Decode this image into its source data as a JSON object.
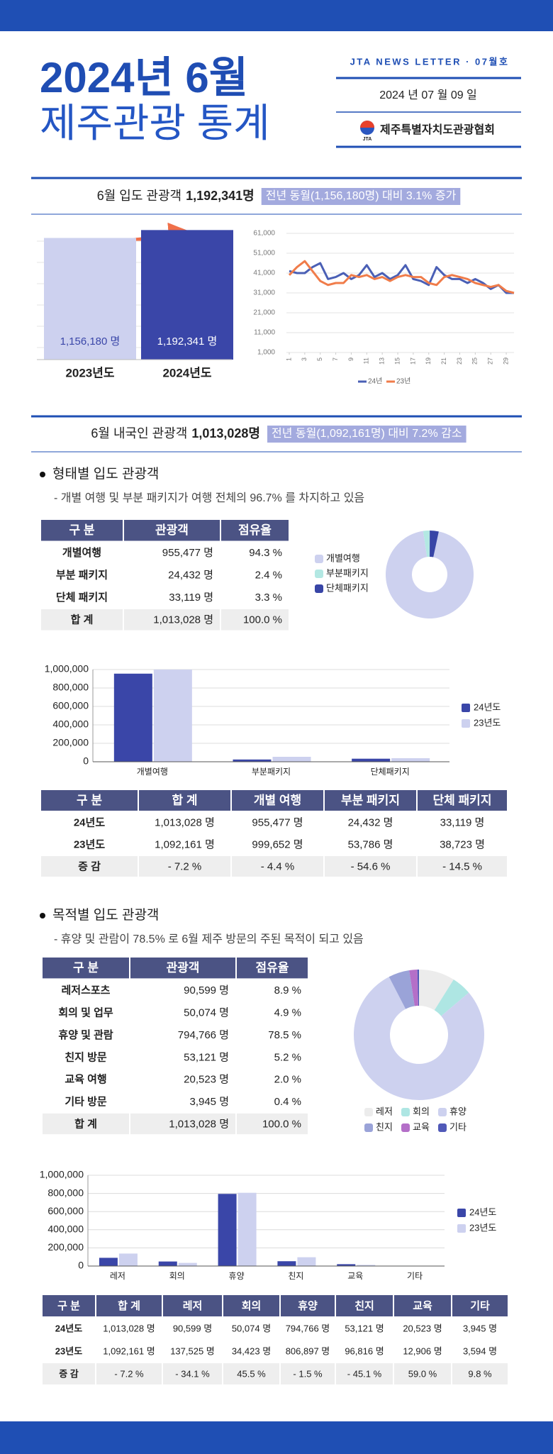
{
  "header": {
    "title_line1": "2024년 6월",
    "title_line2": "제주관광 통계",
    "newsletter": "JTA NEWS LETTER · 07월호",
    "date": "2024 년  07 월  09 일",
    "logo": "JTA",
    "org": "제주특별자치도관광협회"
  },
  "summaries": [
    {
      "label": "6월 입도 관광객",
      "value": "1,192,341명",
      "compare": "전년 동월(1,156,180명) 대비 3.1% 증가"
    },
    {
      "label": "6월 내국인 관광객",
      "value": "1,013,028명",
      "compare": "전년 동월(1,092,161명) 대비 7.2% 감소"
    }
  ],
  "sections": [
    {
      "heading": "형태별 입도 관광객",
      "note": "- 개별 여행 및 부분 패키지가 여행 전체의 96.7% 를 차지하고 있음"
    },
    {
      "heading": "목적별 입도 관광객",
      "note": "- 휴양 및 관람이 78.5% 로 6월 제주 방문의 주된 목적이 되고 있음"
    }
  ],
  "tables": [
    {
      "header": [
        "구 분",
        "관광객",
        "점유율"
      ],
      "rows": [
        [
          "개별여행",
          "955,477 명",
          "94.3 %"
        ],
        [
          "부분 패키지",
          "24,432 명",
          "2.4 %"
        ],
        [
          "단체 패키지",
          "33,119 명",
          "3.3 %"
        ],
        [
          "합 계",
          "1,013,028 명",
          "100.0 %"
        ]
      ]
    },
    {
      "header": [
        "구 분",
        "합 계",
        "개별 여행",
        "부분 패키지",
        "단체 패키지"
      ],
      "rows": [
        [
          "24년도",
          "1,013,028 명",
          "955,477 명",
          "24,432 명",
          "33,119 명"
        ],
        [
          "23년도",
          "1,092,161 명",
          "999,652 명",
          "53,786 명",
          "38,723 명"
        ],
        [
          "증 감",
          "- 7.2 %",
          "- 4.4 %",
          "- 54.6 %",
          "- 14.5 %"
        ]
      ]
    },
    {
      "header": [
        "구 분",
        "관광객",
        "점유율"
      ],
      "rows": [
        [
          "레저스포츠",
          "90,599 명",
          "8.9 %"
        ],
        [
          "회의 및 업무",
          "50,074 명",
          "4.9 %"
        ],
        [
          "휴양 및 관람",
          "794,766 명",
          "78.5 %"
        ],
        [
          "친지 방문",
          "53,121 명",
          "5.2 %"
        ],
        [
          "교육 여행",
          "20,523 명",
          "2.0 %"
        ],
        [
          "기타 방문",
          "3,945 명",
          "0.4 %"
        ],
        [
          "합 계",
          "1,013,028 명",
          "100.0 %"
        ]
      ]
    },
    {
      "header": [
        "구 분",
        "합 계",
        "레저",
        "회의",
        "휴양",
        "친지",
        "교육",
        "기타"
      ],
      "rows": [
        [
          "24년도",
          "1,013,028 명",
          "90,599 명",
          "50,074 명",
          "794,766 명",
          "53,121 명",
          "20,523 명",
          "3,945 명"
        ],
        [
          "23년도",
          "1,092,161 명",
          "137,525 명",
          "34,423 명",
          "806,897 명",
          "96,816 명",
          "12,906 명",
          "3,594 명"
        ],
        [
          "증 감",
          "- 7.2 %",
          "- 34.1 %",
          "45.5 %",
          "- 1.5 %",
          "- 45.1 %",
          "59.0 %",
          "9.8 %"
        ]
      ]
    }
  ],
  "chart_data": [
    {
      "type": "bar",
      "categories": [
        "2023년도",
        "2024년도"
      ],
      "values": [
        1156180,
        1192341
      ],
      "value_labels": [
        "1,156,180 명",
        "1,192,341 명"
      ],
      "colors": [
        "#cdd1ef",
        "#3a46a8"
      ],
      "ylim": [
        600000,
        1200000
      ]
    },
    {
      "type": "line",
      "x": [
        1,
        2,
        3,
        4,
        5,
        6,
        7,
        8,
        9,
        10,
        11,
        12,
        13,
        14,
        15,
        16,
        17,
        18,
        19,
        20,
        21,
        22,
        23,
        24,
        25,
        26,
        27,
        28,
        29,
        30
      ],
      "xlim": [
        1,
        30
      ],
      "xticks": [
        1,
        3,
        5,
        7,
        9,
        11,
        13,
        15,
        17,
        19,
        21,
        23,
        25,
        27,
        29
      ],
      "ylim": [
        1000,
        61000
      ],
      "yticks": [
        {
          "value": 1000,
          "label": "1,000"
        },
        {
          "value": 11000,
          "label": "11,000"
        },
        {
          "value": 21000,
          "label": "21,000"
        },
        {
          "value": 31000,
          "label": "31,000"
        },
        {
          "value": 41000,
          "label": "41,000"
        },
        {
          "value": 51000,
          "label": "51,000"
        },
        {
          "value": 61000,
          "label": "61,000"
        }
      ],
      "grid": true,
      "series": [
        {
          "name": "24년",
          "color": "#4a5fb5",
          "values": [
            42000,
            41000,
            41000,
            44000,
            46000,
            38000,
            39000,
            41000,
            38000,
            40000,
            45000,
            39000,
            41000,
            38000,
            40000,
            45000,
            38000,
            37000,
            35000,
            44000,
            40000,
            38000,
            38000,
            36000,
            38000,
            36000,
            33000,
            35000,
            31000,
            31000
          ]
        },
        {
          "name": "23년",
          "color": "#f07c4a",
          "values": [
            40000,
            44000,
            47000,
            42000,
            37000,
            35000,
            36000,
            36000,
            40000,
            39000,
            40000,
            38000,
            39000,
            37000,
            39000,
            40000,
            39000,
            39000,
            36000,
            35000,
            39000,
            40000,
            39000,
            38000,
            36000,
            35000,
            34000,
            35000,
            32000,
            31000
          ]
        }
      ]
    },
    {
      "type": "pie",
      "categories": [
        "개별여행",
        "부분패키지",
        "단체패키지"
      ],
      "values": [
        94.3,
        2.4,
        3.3
      ],
      "colors": [
        "#cdd1ef",
        "#b3e8e3",
        "#3845a6"
      ],
      "donut": true
    },
    {
      "type": "grouped-bar",
      "categories": [
        "개별여행",
        "부분패키지",
        "단체패키지"
      ],
      "ylim": [
        0,
        1000000
      ],
      "yticks": [
        0,
        {
          "value": 200000,
          "label": "200,000"
        },
        {
          "value": 400000,
          "label": "400,000"
        },
        {
          "value": 600000,
          "label": "600,000"
        },
        {
          "value": 800000,
          "label": "800,000"
        },
        {
          "value": 1000000,
          "label": "1,000,000"
        }
      ],
      "series": [
        {
          "name": "24년도",
          "color": "#3a46a8",
          "values": [
            955477,
            24432,
            33119
          ]
        },
        {
          "name": "23년도",
          "color": "#cdd1ef",
          "values": [
            999652,
            53786,
            38723
          ]
        }
      ]
    },
    {
      "type": "pie",
      "categories": [
        "레저",
        "회의",
        "휴양",
        "친지",
        "교육",
        "기타"
      ],
      "values": [
        8.9,
        4.9,
        78.5,
        5.2,
        2.0,
        0.4
      ],
      "colors": [
        "#ececec",
        "#aee6e3",
        "#cdd1ef",
        "#9aa3d8",
        "#b46fc8",
        "#5059b8"
      ],
      "donut": true
    },
    {
      "type": "grouped-bar",
      "categories": [
        "레저",
        "회의",
        "휴양",
        "친지",
        "교육",
        "기타"
      ],
      "ylim": [
        0,
        1000000
      ],
      "yticks": [
        0,
        {
          "value": 200000,
          "label": "200,000"
        },
        {
          "value": 400000,
          "label": "400,000"
        },
        {
          "value": 600000,
          "label": "600,000"
        },
        {
          "value": 800000,
          "label": "800,000"
        },
        {
          "value": 1000000,
          "label": "1,000,000"
        }
      ],
      "series": [
        {
          "name": "24년도",
          "color": "#3a46a8",
          "values": [
            90599,
            50074,
            794766,
            53121,
            20523,
            3945
          ]
        },
        {
          "name": "23년도",
          "color": "#cdd1ef",
          "values": [
            137525,
            34423,
            806897,
            96816,
            12906,
            3594
          ]
        }
      ]
    }
  ]
}
